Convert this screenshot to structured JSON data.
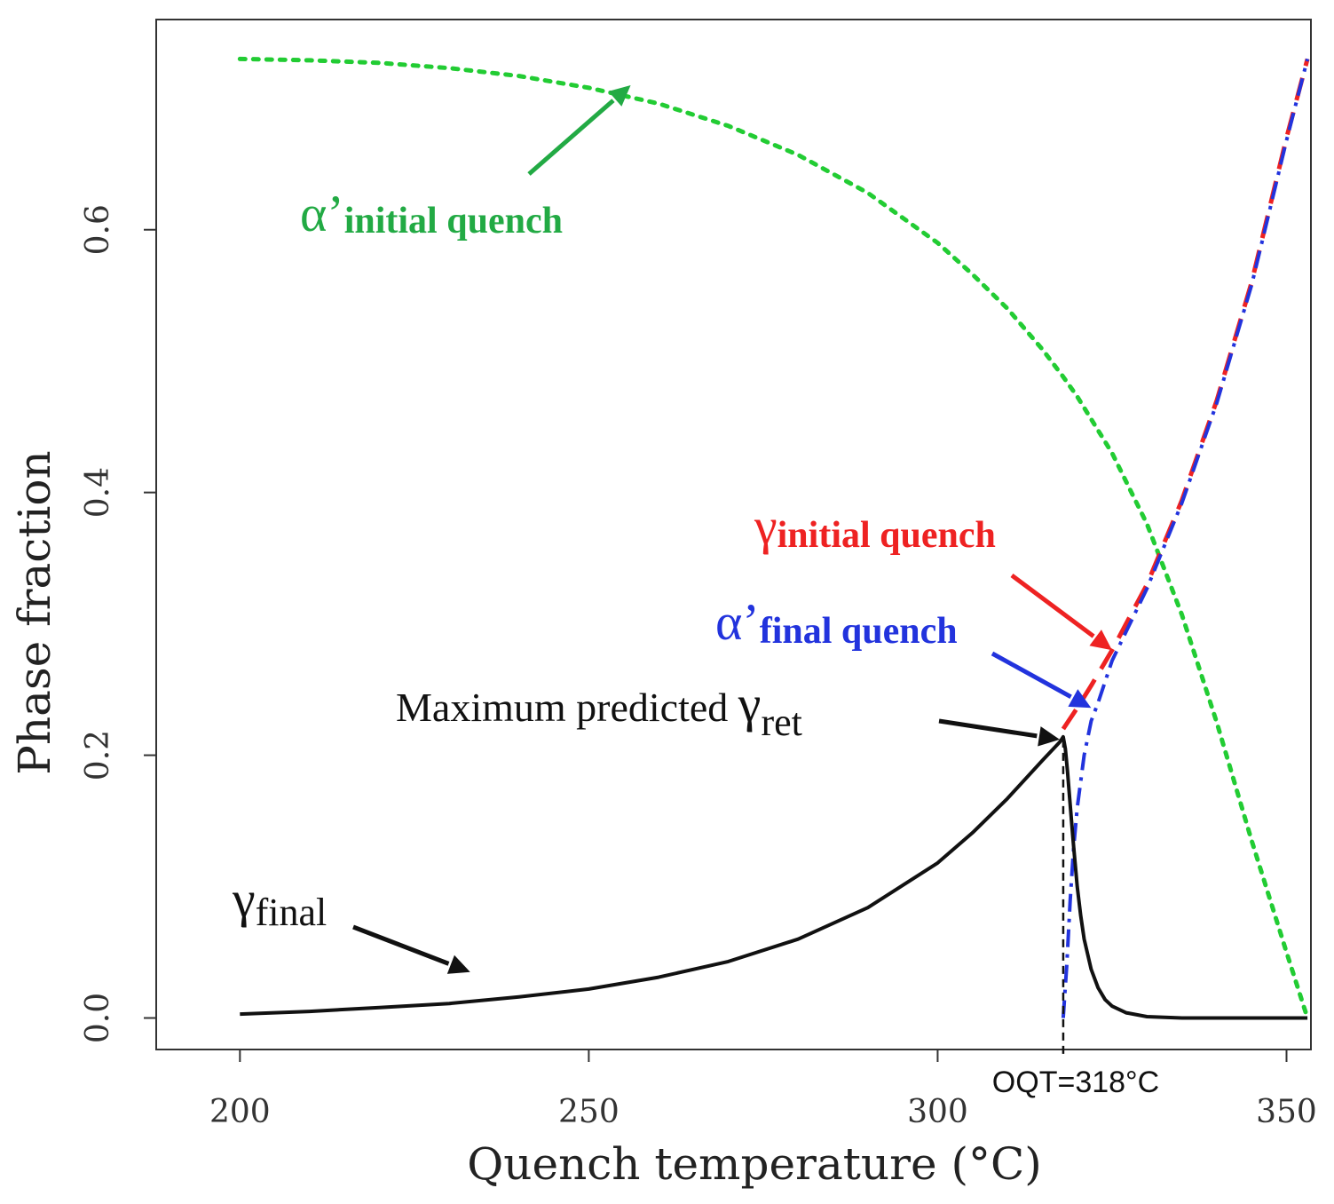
{
  "chart_data": {
    "type": "line",
    "xlabel": "Quench temperature (°C)",
    "ylabel": "Phase fraction",
    "xlim": [
      188,
      353.5
    ],
    "ylim": [
      -0.024,
      0.76
    ],
    "x_ticks": [
      200,
      250,
      300,
      350
    ],
    "y_ticks": [
      "0.0",
      "0.2",
      "0.4",
      "0.6"
    ],
    "grid": false,
    "colors": {
      "alpha_initial": "#22cc33",
      "gamma_initial": "#ee2222",
      "alpha_final": "#2233dd",
      "gamma_final": "#111111",
      "oqt_line": "#111111"
    },
    "series": [
      {
        "name": "α′ initial quench",
        "style": "dotted",
        "x": [
          200,
          210,
          220,
          230,
          240,
          250,
          260,
          270,
          280,
          290,
          300,
          305,
          310,
          315,
          318,
          320,
          325,
          330,
          335,
          340,
          345,
          350,
          353
        ],
        "y": [
          0.73,
          0.729,
          0.727,
          0.723,
          0.717,
          0.708,
          0.696,
          0.679,
          0.657,
          0.628,
          0.59,
          0.566,
          0.54,
          0.509,
          0.488,
          0.473,
          0.43,
          0.376,
          0.307,
          0.225,
          0.135,
          0.05,
          0.0
        ]
      },
      {
        "name": "γ initial quench",
        "style": "dashed",
        "x": [
          318,
          320,
          322,
          325,
          330,
          335,
          340,
          345,
          350,
          353
        ],
        "y": [
          0.22,
          0.236,
          0.253,
          0.28,
          0.33,
          0.394,
          0.47,
          0.56,
          0.67,
          0.73
        ]
      },
      {
        "name": "α′ final quench",
        "style": "dash-dot",
        "x": [
          318,
          318.5,
          319,
          319.5,
          320,
          321,
          322,
          323,
          325,
          330,
          335,
          340,
          345,
          350,
          353
        ],
        "y": [
          0.0,
          0.04,
          0.09,
          0.13,
          0.16,
          0.2,
          0.226,
          0.24,
          0.272,
          0.327,
          0.392,
          0.468,
          0.558,
          0.668,
          0.73
        ]
      },
      {
        "name": "γ final",
        "style": "solid",
        "x": [
          200,
          210,
          220,
          230,
          240,
          250,
          260,
          270,
          280,
          290,
          300,
          305,
          310,
          315,
          317.5,
          318,
          318.3,
          318.6,
          319,
          319.5,
          320,
          320.5,
          321,
          322,
          323,
          324,
          325,
          327,
          330,
          335,
          340,
          345,
          350,
          353
        ],
        "y": [
          0.003,
          0.005,
          0.008,
          0.011,
          0.016,
          0.022,
          0.031,
          0.043,
          0.06,
          0.084,
          0.118,
          0.141,
          0.167,
          0.196,
          0.21,
          0.214,
          0.205,
          0.188,
          0.162,
          0.13,
          0.1,
          0.078,
          0.06,
          0.037,
          0.023,
          0.014,
          0.009,
          0.004,
          0.001,
          0.0,
          0.0,
          0.0,
          0.0,
          0.0
        ]
      }
    ],
    "oqt_line": {
      "x": 318,
      "label": "OQT=318°C"
    },
    "annotations": [
      {
        "id": "alpha_initial",
        "symbol": "α’",
        "subscript": "initial quench",
        "target": {
          "x": 256,
          "y": 0.71
        }
      },
      {
        "id": "gamma_initial",
        "symbol": "γ",
        "subscript": "initial quench",
        "target": {
          "x": 325,
          "y": 0.28
        }
      },
      {
        "id": "alpha_final",
        "symbol": "α’",
        "subscript": "final quench",
        "target": {
          "x": 322,
          "y": 0.236
        }
      },
      {
        "id": "gamma_ret",
        "text": "Maximum predicted ",
        "symbol": "γ",
        "subscript": "ret",
        "target": {
          "x": 317.5,
          "y": 0.212
        }
      },
      {
        "id": "gamma_final",
        "symbol": "γ",
        "subscript": "final",
        "target": {
          "x": 233,
          "y": 0.035
        }
      }
    ]
  }
}
